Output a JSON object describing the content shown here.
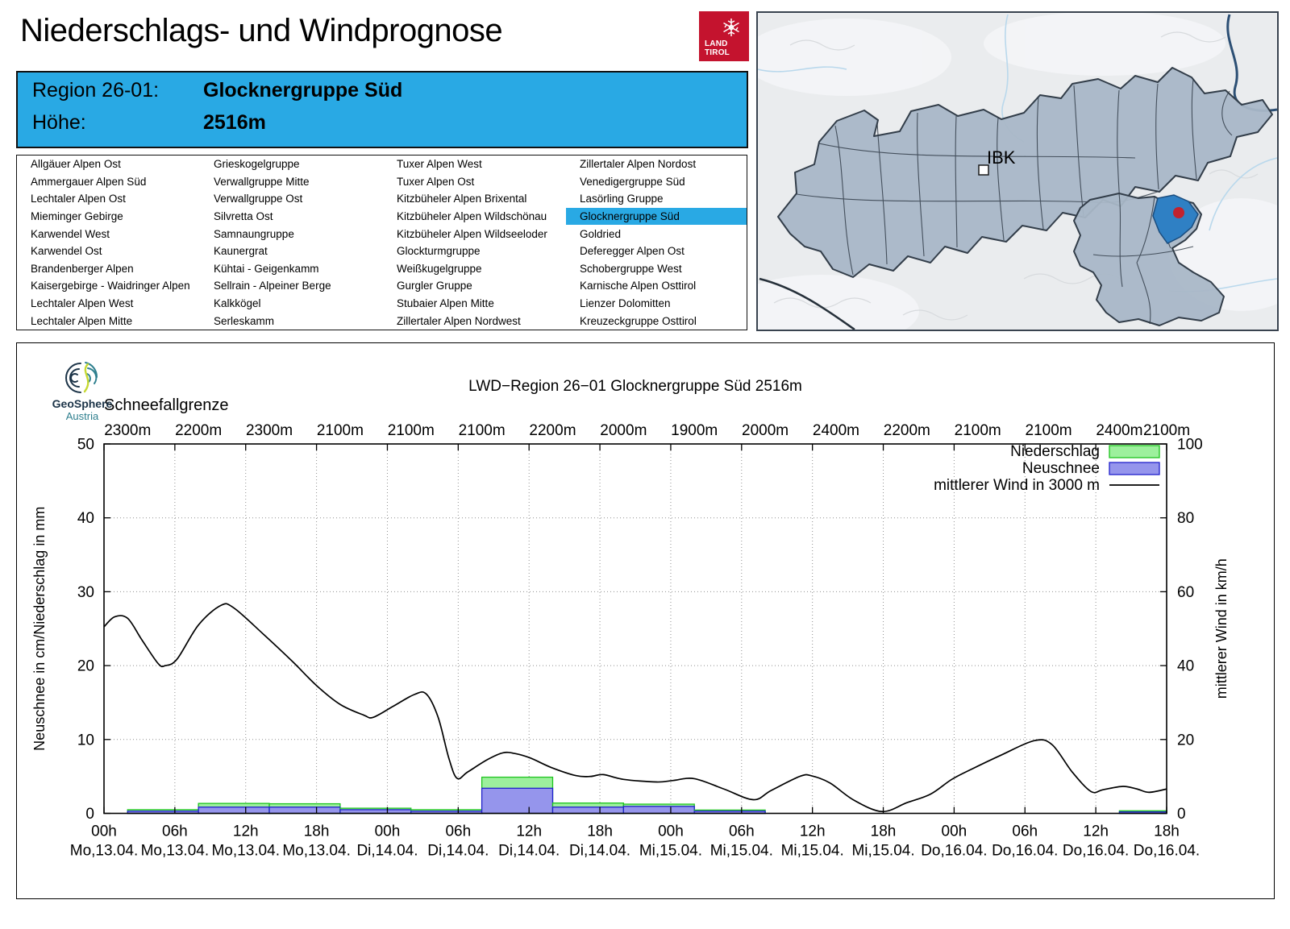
{
  "header": {
    "title": "Niederschlags- und Windprognose",
    "landtirol_logo": {
      "line1": "LAND",
      "line2": "TIROL"
    }
  },
  "region_box": {
    "region_label": "Region 26-01:",
    "region_value": "Glocknergruppe Süd",
    "altitude_label": "Höhe:",
    "altitude_value": "2516m"
  },
  "region_table": {
    "selected": "Glocknergruppe Süd",
    "columns": [
      [
        "Allgäuer Alpen Ost",
        "Ammergauer Alpen Süd",
        "Lechtaler Alpen Ost",
        "Mieminger Gebirge",
        "Karwendel West",
        "Karwendel Ost",
        "Brandenberger Alpen",
        "Kaisergebirge - Waidringer Alpen",
        "Lechtaler Alpen West",
        "Lechtaler Alpen Mitte"
      ],
      [
        "Grieskogelgruppe",
        "Verwallgruppe Mitte",
        "Verwallgruppe Ost",
        "Silvretta Ost",
        "Samnaungruppe",
        "Kaunergrat",
        "Kühtai - Geigenkamm",
        "Sellrain - Alpeiner Berge",
        "Kalkkögel",
        "Serleskamm"
      ],
      [
        "Tuxer Alpen West",
        "Tuxer Alpen Ost",
        "Kitzbüheler Alpen Brixental",
        "Kitzbüheler Alpen Wildschönau",
        "Kitzbüheler Alpen Wildseeloder",
        "Glockturmgruppe",
        "Weißkugelgruppe",
        "Gurgler Gruppe",
        "Stubaier Alpen Mitte",
        "Zillertaler Alpen Nordwest"
      ],
      [
        "Zillertaler Alpen Nordost",
        "Venedigergruppe Süd",
        "Lasörling Gruppe",
        "Glocknergruppe Süd",
        "Goldried",
        "Deferegger Alpen Ost",
        "Schobergruppe West",
        "Karnische Alpen Osttirol",
        "Lienzer Dolomitten",
        "Kreuzeckgruppe Osttirol"
      ]
    ]
  },
  "map": {
    "marker_label": "IBK",
    "region_fill": "#a9b7c7",
    "region_stroke": "#323d49",
    "highlight_fill": "#2f80c4",
    "dot_color": "#c2222e"
  },
  "geosphere": {
    "line1": "GeoSphere",
    "line2": "Austria"
  },
  "colors": {
    "accent_blue": "#29a9e4",
    "niederschlag_fill": "#9df09d",
    "niederschlag_stroke": "#1ec41e",
    "neuschnee_fill": "#9595ec",
    "neuschnee_stroke": "#2121cc",
    "wind_line": "#000000",
    "grid": "#8f8f8f"
  },
  "chart_data": {
    "type": "composite",
    "title": "LWD−Region 26−01 Glocknergruppe Süd 2516m",
    "x2_title": "Schneefallgrenze",
    "x2_labels": [
      "2300m",
      "2200m",
      "2300m",
      "2100m",
      "2100m",
      "2100m",
      "2200m",
      "2000m",
      "1900m",
      "2000m",
      "2400m",
      "2200m",
      "2100m",
      "2100m",
      "2400m",
      "2100m"
    ],
    "x2_positions_h": [
      2,
      8,
      14,
      20,
      26,
      32,
      38,
      44,
      50,
      56,
      62,
      68,
      74,
      80,
      86,
      90
    ],
    "ylabel_left": "Neuschnee in cm/Niederschlag in mm",
    "ylabel_right": "mittlerer Wind in km/h",
    "ylim_left": [
      0,
      50
    ],
    "ylim_right": [
      0,
      100
    ],
    "yticks_left": [
      0,
      10,
      20,
      30,
      40,
      50
    ],
    "yticks_right": [
      0,
      20,
      40,
      60,
      80,
      100
    ],
    "x_hours_span": 90,
    "xtick_times": [
      "00h",
      "06h",
      "12h",
      "18h",
      "00h",
      "06h",
      "12h",
      "18h",
      "00h",
      "06h",
      "12h",
      "18h",
      "00h",
      "06h",
      "12h",
      "18h"
    ],
    "xtick_dates": [
      "Mo,13.04.",
      "Mo,13.04.",
      "Mo,13.04.",
      "Mo,13.04.",
      "Di,14.04.",
      "Di,14.04.",
      "Di,14.04.",
      "Di,14.04.",
      "Mi,15.04.",
      "Mi,15.04.",
      "Mi,15.04.",
      "Mi,15.04.",
      "Do,16.04.",
      "Do,16.04.",
      "Do,16.04.",
      "Do,16.04."
    ],
    "legend": [
      {
        "label": "Niederschlag",
        "type": "box",
        "series": "niederschlag"
      },
      {
        "label": "Neuschnee",
        "type": "box",
        "series": "neuschnee"
      },
      {
        "label": "mittlerer Wind in 3000 m",
        "type": "line",
        "series": "wind"
      }
    ],
    "bars": [
      {
        "start_h": 2,
        "end_h": 8,
        "niederschlag_mm": 0.5,
        "neuschnee_cm": 0.3
      },
      {
        "start_h": 8,
        "end_h": 14,
        "niederschlag_mm": 1.35,
        "neuschnee_cm": 0.85
      },
      {
        "start_h": 14,
        "end_h": 20,
        "niederschlag_mm": 1.3,
        "neuschnee_cm": 0.85
      },
      {
        "start_h": 20,
        "end_h": 26,
        "niederschlag_mm": 0.7,
        "neuschnee_cm": 0.5
      },
      {
        "start_h": 26,
        "end_h": 32,
        "niederschlag_mm": 0.5,
        "neuschnee_cm": 0.3
      },
      {
        "start_h": 32,
        "end_h": 38,
        "niederschlag_mm": 4.9,
        "neuschnee_cm": 3.4
      },
      {
        "start_h": 38,
        "end_h": 44,
        "niederschlag_mm": 1.4,
        "neuschnee_cm": 0.85
      },
      {
        "start_h": 44,
        "end_h": 50,
        "niederschlag_mm": 1.25,
        "neuschnee_cm": 0.95
      },
      {
        "start_h": 50,
        "end_h": 56,
        "niederschlag_mm": 0.45,
        "neuschnee_cm": 0.3
      },
      {
        "start_h": 86,
        "end_h": 90,
        "niederschlag_mm": 0.35,
        "neuschnee_cm": 0.2
      }
    ],
    "wind_series": {
      "name": "mittlerer Wind in 3000 m",
      "units": "km/h",
      "points": [
        [
          0,
          50.5
        ],
        [
          0.9,
          53.2
        ],
        [
          2,
          52.8
        ],
        [
          3.2,
          47
        ],
        [
          4.6,
          40.5
        ],
        [
          5.2,
          40
        ],
        [
          6.2,
          41.8
        ],
        [
          8,
          51
        ],
        [
          9.9,
          56.3
        ],
        [
          11,
          55.6
        ],
        [
          13.5,
          48.5
        ],
        [
          16,
          41
        ],
        [
          18,
          34.6
        ],
        [
          20,
          29.5
        ],
        [
          22,
          26.6
        ],
        [
          22.8,
          26
        ],
        [
          24.5,
          29
        ],
        [
          26.3,
          32.2
        ],
        [
          27.3,
          32.3
        ],
        [
          28.3,
          26
        ],
        [
          29.2,
          15
        ],
        [
          29.9,
          9.5
        ],
        [
          30.8,
          11.2
        ],
        [
          32.5,
          14.6
        ],
        [
          33.8,
          16.4
        ],
        [
          34.8,
          16.2
        ],
        [
          36.1,
          15
        ],
        [
          37.9,
          12.4
        ],
        [
          40,
          10.2
        ],
        [
          41.2,
          10
        ],
        [
          42.3,
          10.5
        ],
        [
          44,
          9.2
        ],
        [
          46.8,
          8.5
        ],
        [
          48.2,
          8.9
        ],
        [
          50,
          9.4
        ],
        [
          52.5,
          6.6
        ],
        [
          55,
          3.7
        ],
        [
          56.5,
          6.2
        ],
        [
          59,
          10.1
        ],
        [
          60,
          10.1
        ],
        [
          61.5,
          8.2
        ],
        [
          63.5,
          3.6
        ],
        [
          65.9,
          0.5
        ],
        [
          68,
          2.9
        ],
        [
          70,
          5.2
        ],
        [
          71.8,
          9.2
        ],
        [
          73.5,
          12
        ],
        [
          76,
          15.8
        ],
        [
          78.8,
          19.7
        ],
        [
          80.3,
          18.6
        ],
        [
          82,
          11.2
        ],
        [
          83.6,
          5.9
        ],
        [
          84.6,
          6.4
        ],
        [
          86.3,
          7.3
        ],
        [
          87.5,
          6.6
        ],
        [
          88.5,
          5.7
        ],
        [
          90,
          6.6
        ]
      ]
    }
  }
}
